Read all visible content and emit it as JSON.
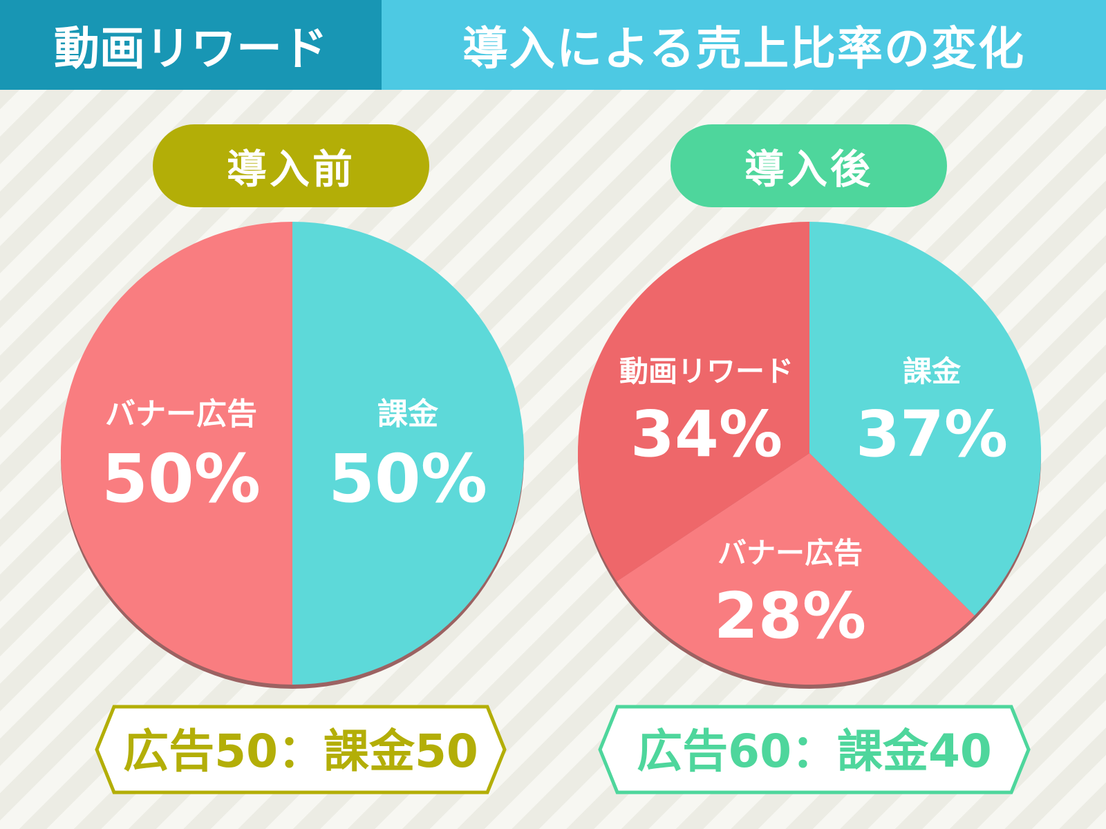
{
  "header": {
    "tag": "動画リワード",
    "title": "導入による売上比率の変化"
  },
  "colors": {
    "tag_bg": "#1896b4",
    "title_bg": "#4dc9e3",
    "before_accent": "#b3ae07",
    "after_accent": "#4ed69c",
    "banner": "#f97d80",
    "billing": "#5dd9d9",
    "reward": "#ee676a",
    "pie_shadow": "#9c6262"
  },
  "chart_data": [
    {
      "type": "pie",
      "title": "導入前",
      "slices": [
        {
          "name": "課金",
          "value": 50,
          "label": "50%",
          "color": "#5dd9d9"
        },
        {
          "name": "バナー広告",
          "value": 50,
          "label": "50%",
          "color": "#f97d80"
        }
      ],
      "summary": "広告50：課金50"
    },
    {
      "type": "pie",
      "title": "導入後",
      "slices": [
        {
          "name": "課金",
          "value": 37,
          "label": "37%",
          "color": "#5dd9d9"
        },
        {
          "name": "バナー広告",
          "value": 28,
          "label": "28%",
          "color": "#f97d80"
        },
        {
          "name": "動画リワード",
          "value": 34,
          "label": "34%",
          "color": "#ee676a"
        }
      ],
      "summary": "広告60：課金40"
    }
  ]
}
